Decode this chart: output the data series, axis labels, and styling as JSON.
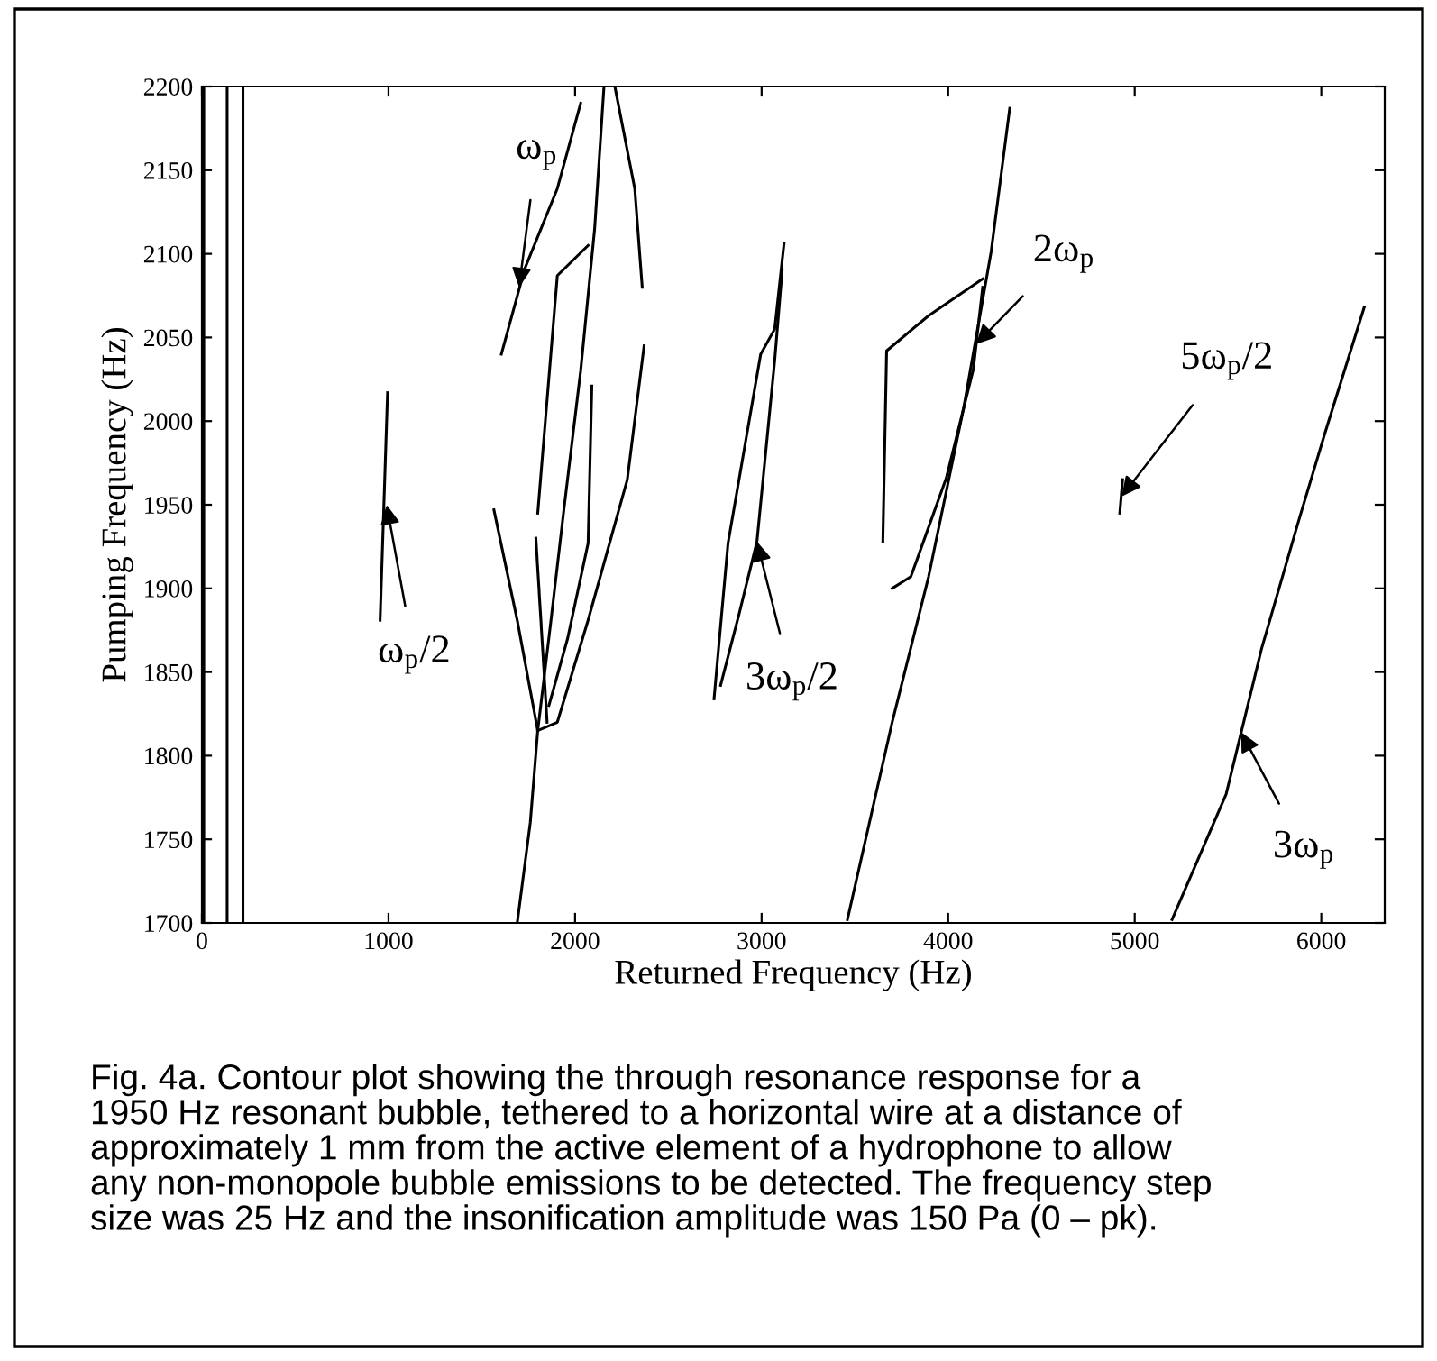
{
  "chart_data": {
    "type": "line",
    "xlabel": "Returned Frequency (Hz)",
    "ylabel": "Pumping Frequency (Hz)",
    "xlim": [
      0,
      6340
    ],
    "ylim": [
      1700,
      2200
    ],
    "xticks": [
      0,
      1000,
      2000,
      3000,
      4000,
      5000,
      6000
    ],
    "yticks": [
      1700,
      1750,
      1800,
      1850,
      1900,
      1950,
      2000,
      2050,
      2100,
      2150,
      2200
    ],
    "legend": false,
    "marker": "none",
    "line_style": "solid",
    "ref_lines": [
      {
        "axis": "x",
        "value": 10,
        "color": "#000000"
      },
      {
        "axis": "x",
        "value": 135,
        "color": "#000000"
      },
      {
        "axis": "x",
        "value": 220,
        "color": "#000000"
      }
    ],
    "series": [
      {
        "color": "#000000",
        "x": [
          1690,
          1760,
          1800,
          1870,
          1940,
          2030,
          2105,
          2155
        ],
        "values": [
          1700,
          1760,
          1815,
          1880,
          1947,
          2030,
          2115,
          2200
        ]
      },
      {
        "color": "#000000",
        "x": [
          1565,
          1690,
          1800
        ],
        "values": [
          1947,
          1881,
          1815
        ]
      },
      {
        "color": "#000000",
        "x": [
          1605,
          1730,
          1905,
          2030
        ],
        "values": [
          2040,
          2091,
          2139,
          2190
        ]
      },
      {
        "color": "#000000",
        "x": [
          1800,
          1905,
          2070,
          2280,
          2370
        ],
        "values": [
          1815,
          1820,
          1881,
          1965,
          2045
        ]
      },
      {
        "color": "#000000",
        "x": [
          2215,
          2320,
          2360
        ],
        "values": [
          2199,
          2139,
          2080
        ]
      },
      {
        "color": "#000000",
        "x": [
          1790,
          1850
        ],
        "values": [
          1930,
          1820
        ]
      },
      {
        "color": "#000000",
        "x": [
          1800,
          1905,
          2070
        ],
        "values": [
          1945,
          2087,
          2105
        ]
      },
      {
        "color": "#000000",
        "x": [
          1860,
          1960,
          2070,
          2090
        ],
        "values": [
          1830,
          1870,
          1927,
          2021
        ]
      },
      {
        "color": "#000000",
        "x": [
          955,
          995
        ],
        "values": [
          1881,
          2017
        ]
      },
      {
        "color": "#000000",
        "x": [
          2745,
          2820,
          2995,
          3070,
          3120
        ],
        "values": [
          1834,
          1927,
          2040,
          2055,
          2106
        ]
      },
      {
        "color": "#000000",
        "x": [
          2780,
          2880,
          2975,
          3070,
          3110
        ],
        "values": [
          1842,
          1885,
          1928,
          2036,
          2090
        ]
      },
      {
        "color": "#000000",
        "x": [
          3460,
          3700,
          3895,
          4085,
          4230,
          4330
        ],
        "values": [
          1702,
          1820,
          1907,
          2009,
          2101,
          2187
        ]
      },
      {
        "color": "#000000",
        "x": [
          3650,
          3670,
          3895,
          4185
        ],
        "values": [
          1928,
          2042,
          2063,
          2085
        ]
      },
      {
        "color": "#000000",
        "x": [
          3700,
          3800,
          3990,
          4135,
          4185
        ],
        "values": [
          1900,
          1907,
          1966,
          2031,
          2080
        ]
      },
      {
        "color": "#000000",
        "x": [
          4920,
          4935
        ],
        "values": [
          1945,
          1965
        ]
      },
      {
        "color": "#000000",
        "x": [
          5200,
          5490,
          5680,
          5875,
          6020,
          6230
        ],
        "values": [
          1702,
          1777,
          1864,
          1939,
          1993,
          2068
        ]
      }
    ],
    "annotations": [
      {
        "text": "ω$_{p}$",
        "x": 1700,
        "y": 2080
      },
      {
        "text": "ω$_{p}$/2",
        "x": 990,
        "y": 1950
      },
      {
        "text": "3ω$_{p}$/2",
        "x": 2975,
        "y": 1928
      },
      {
        "text": "2ω$_{p}$",
        "x": 4150,
        "y": 2046
      },
      {
        "text": "5ω$_{p}$/2",
        "x": 4930,
        "y": 1955
      },
      {
        "text": "3ω$_{p}$",
        "x": 5570,
        "y": 1814
      },
      "Fig. 4a. Contour plot showing the through resonance response for a\n1950 Hz resonant bubble, tethered to a horizontal wire at a distance of\napproximately 1 mm from the active element of a hydrophone to allow\nany non-monopole bubble emissions to be detected. The frequency step\nsize was 25 Hz and the insonification amplitude was 150 Pa (0 – pk)."
    ]
  }
}
